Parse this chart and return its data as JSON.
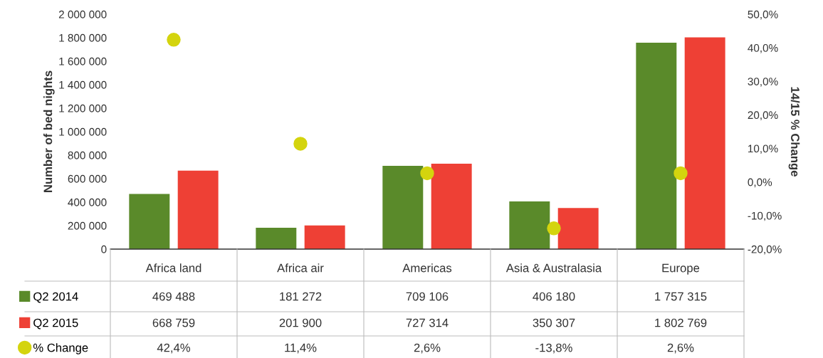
{
  "chart_data": {
    "type": "bar",
    "ylabel": "Number of bed nights",
    "y2label": "14/15 % Change",
    "categories": [
      "Africa land",
      "Africa air",
      "Americas",
      "Asia & Australasia",
      "Europe"
    ],
    "series": [
      {
        "name": "Q2 2014",
        "color": "#5a8a2a",
        "values": [
          469488,
          181272,
          709106,
          406180,
          1757315
        ],
        "value_labels": [
          "469 488",
          "181 272",
          "709 106",
          "406 180",
          "1 757 315"
        ]
      },
      {
        "name": "Q2 2015",
        "color": "#ee4035",
        "values": [
          668759,
          201900,
          727314,
          350307,
          1802769
        ],
        "value_labels": [
          "668 759",
          "201 900",
          "727 314",
          "350 307",
          "1 802 769"
        ]
      },
      {
        "name": "% Change",
        "type": "scatter",
        "axis": "y2",
        "color": "#d4d40e",
        "values": [
          42.4,
          11.4,
          2.6,
          -13.8,
          2.6
        ],
        "value_labels": [
          "42,4%",
          "11,4%",
          "2,6%",
          "-13,8%",
          "2,6%"
        ]
      }
    ],
    "ylim": [
      0,
      2000000
    ],
    "yticks": [
      0,
      {
        "value": 200000,
        "label": "200 000"
      },
      {
        "value": 400000,
        "label": "400 000"
      },
      {
        "value": 600000,
        "label": "600 000"
      },
      {
        "value": 800000,
        "label": "800 000"
      },
      {
        "value": 1000000,
        "label": "1 000 000"
      },
      {
        "value": 1200000,
        "label": "1 200 000"
      },
      {
        "value": 1400000,
        "label": "1 400 000"
      },
      {
        "value": 1600000,
        "label": "1 600 000"
      },
      {
        "value": 1800000,
        "label": "1 800 000"
      },
      {
        "value": 2000000,
        "label": "2 000 000"
      }
    ],
    "y2lim": [
      -20,
      50
    ],
    "y2ticks": [
      {
        "value": -20,
        "label": "-20,0%"
      },
      {
        "value": -10,
        "label": "-10,0%"
      },
      {
        "value": 0,
        "label": "0,0%"
      },
      {
        "value": 10,
        "label": "10,0%"
      },
      {
        "value": 20,
        "label": "20,0%"
      },
      {
        "value": 30,
        "label": "30,0%"
      },
      {
        "value": 40,
        "label": "40,0%"
      },
      {
        "value": 50,
        "label": "50,0%"
      }
    ],
    "marker": "circle",
    "grid": false,
    "legend": "bottom left"
  }
}
